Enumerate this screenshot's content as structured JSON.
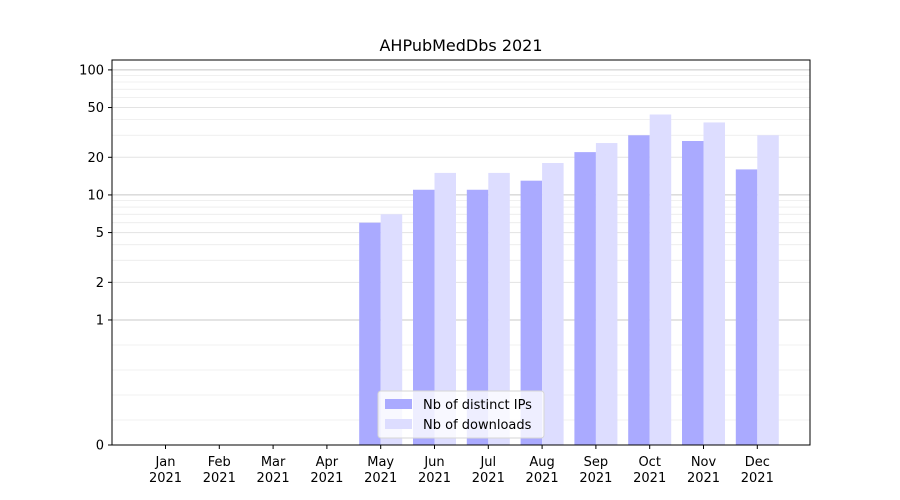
{
  "chart_data": {
    "type": "bar",
    "title": "AHPubMedDbs 2021",
    "xlabel": "",
    "ylabel": "",
    "yscale": "symlog",
    "ylim": [
      0,
      120
    ],
    "yticks": [
      0,
      1,
      2,
      5,
      10,
      20,
      50,
      100
    ],
    "grid": true,
    "legend_position": "bottom-center",
    "categories": [
      "Jan\n2021",
      "Feb\n2021",
      "Mar\n2021",
      "Apr\n2021",
      "May\n2021",
      "Jun\n2021",
      "Jul\n2021",
      "Aug\n2021",
      "Sep\n2021",
      "Oct\n2021",
      "Nov\n2021",
      "Dec\n2021"
    ],
    "series": [
      {
        "name": "Nb of distinct IPs",
        "color": "#aaaaff",
        "values": [
          0,
          0,
          0,
          0,
          6,
          11,
          11,
          13,
          22,
          30,
          27,
          16
        ]
      },
      {
        "name": "Nb of downloads",
        "color": "#ddddff",
        "values": [
          0,
          0,
          0,
          0,
          7,
          15,
          15,
          18,
          26,
          44,
          38,
          30
        ]
      }
    ]
  }
}
